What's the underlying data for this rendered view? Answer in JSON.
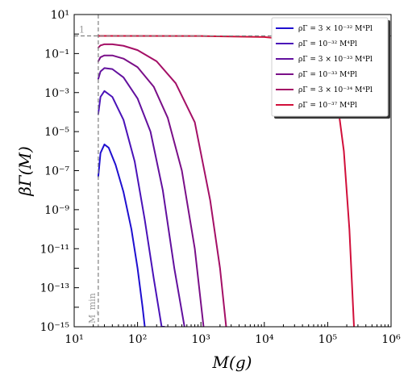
{
  "chart_data": {
    "type": "line",
    "title": "",
    "xlabel": "M(g)",
    "ylabel": "βΓ(M)",
    "x_scale": "log",
    "y_scale": "log",
    "xlim": [
      10,
      1000000
    ],
    "ylim": [
      1e-15,
      10
    ],
    "grid": false,
    "legend_position": "top-right",
    "x_ticks": [
      {
        "value": 10,
        "label": "10¹"
      },
      {
        "value": 100,
        "label": "10²"
      },
      {
        "value": 1000,
        "label": "10³"
      },
      {
        "value": 10000,
        "label": "10⁴"
      },
      {
        "value": 100000,
        "label": "10⁵"
      },
      {
        "value": 1000000,
        "label": "10⁶"
      }
    ],
    "y_ticks": [
      {
        "value": 10,
        "label": "10¹"
      },
      {
        "value": 0.1,
        "label": "10⁻¹"
      },
      {
        "value": 0.001,
        "label": "10⁻³"
      },
      {
        "value": 1e-05,
        "label": "10⁻⁵"
      },
      {
        "value": 1e-07,
        "label": "10⁻⁷"
      },
      {
        "value": 1e-09,
        "label": "10⁻⁹"
      },
      {
        "value": 1e-11,
        "label": "10⁻¹¹"
      },
      {
        "value": 1e-13,
        "label": "10⁻¹³"
      },
      {
        "value": 1e-15,
        "label": "10⁻¹⁵"
      }
    ],
    "reference_lines": [
      {
        "orientation": "horizontal",
        "value": 0.8,
        "label": "1",
        "style": "dashed",
        "color": "#808080"
      },
      {
        "orientation": "vertical",
        "value": 24,
        "label": "M_min",
        "style": "dashed",
        "color": "#808080"
      }
    ],
    "series": [
      {
        "name": "ρΓ = 3 × 10⁻³² M⁴Pl",
        "color": "#1f0fd0",
        "points": [
          [
            24,
            5e-08
          ],
          [
            26,
            8e-07
          ],
          [
            30,
            2.2e-06
          ],
          [
            35,
            1.5e-06
          ],
          [
            45,
            2e-07
          ],
          [
            60,
            8e-09
          ],
          [
            80,
            1e-10
          ],
          [
            100,
            1e-12
          ],
          [
            120,
            1e-14
          ],
          [
            130,
            1e-15
          ]
        ]
      },
      {
        "name": "ρΓ = 10⁻³² M⁴Pl",
        "color": "#4a12b8",
        "points": [
          [
            24,
            8e-05
          ],
          [
            26,
            0.0006
          ],
          [
            30,
            0.0012
          ],
          [
            40,
            0.0006
          ],
          [
            60,
            4e-05
          ],
          [
            90,
            3e-07
          ],
          [
            130,
            3e-10
          ],
          [
            180,
            3e-13
          ],
          [
            240,
            1e-15
          ],
          [
            265,
            1e-15
          ]
        ]
      },
      {
        "name": "ρΓ = 3 × 10⁻³³ M⁴Pl",
        "color": "#62109e",
        "points": [
          [
            24,
            0.005
          ],
          [
            26,
            0.012
          ],
          [
            30,
            0.018
          ],
          [
            40,
            0.016
          ],
          [
            60,
            0.006
          ],
          [
            100,
            0.0005
          ],
          [
            160,
            1e-05
          ],
          [
            250,
            1e-08
          ],
          [
            380,
            1e-12
          ],
          [
            550,
            1e-15
          ]
        ]
      },
      {
        "name": "ρΓ = 10⁻³³ M⁴Pl",
        "color": "#7a0f88",
        "points": [
          [
            24,
            0.04
          ],
          [
            26,
            0.065
          ],
          [
            30,
            0.08
          ],
          [
            40,
            0.08
          ],
          [
            60,
            0.055
          ],
          [
            100,
            0.02
          ],
          [
            180,
            0.002
          ],
          [
            300,
            5e-05
          ],
          [
            500,
            1e-07
          ],
          [
            800,
            1e-11
          ],
          [
            1100,
            1e-15
          ]
        ]
      },
      {
        "name": "ρΓ = 3 × 10⁻³⁴ M⁴Pl",
        "color": "#a40f66",
        "points": [
          [
            24,
            0.2
          ],
          [
            26,
            0.26
          ],
          [
            30,
            0.3
          ],
          [
            40,
            0.3
          ],
          [
            60,
            0.25
          ],
          [
            100,
            0.15
          ],
          [
            200,
            0.04
          ],
          [
            400,
            0.003
          ],
          [
            800,
            3e-05
          ],
          [
            1400,
            3e-09
          ],
          [
            2000,
            1e-12
          ],
          [
            2500,
            1e-15
          ]
        ]
      },
      {
        "name": "ρΓ = 10⁻³⁷ M⁴Pl",
        "color": "#d10f3a",
        "points": [
          [
            24,
            0.8
          ],
          [
            1000,
            0.79
          ],
          [
            10000,
            0.7
          ],
          [
            30000,
            0.5
          ],
          [
            60000,
            0.2
          ],
          [
            100000,
            0.02
          ],
          [
            140000,
            0.0005
          ],
          [
            180000,
            1e-06
          ],
          [
            220000,
            1e-10
          ],
          [
            260000,
            1e-15
          ]
        ]
      }
    ]
  }
}
